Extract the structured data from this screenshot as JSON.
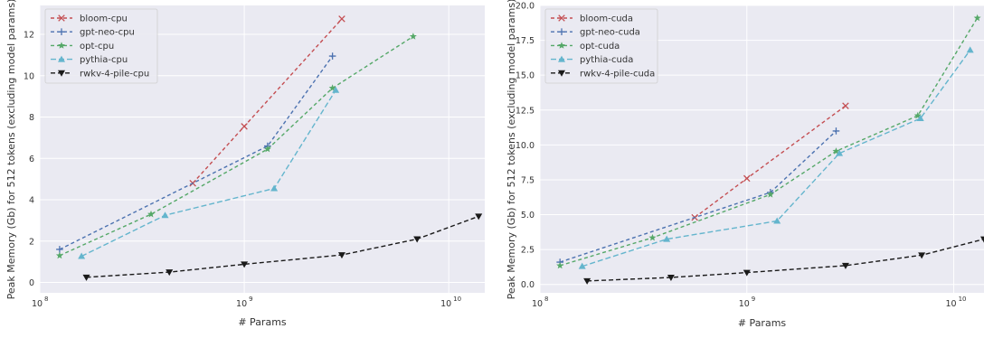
{
  "chart_data": [
    {
      "type": "line",
      "title": "",
      "xlabel": "# Params",
      "ylabel": "Peak Memory (Gb) for 512 tokens (excluding model params)",
      "xscale": "log",
      "xlim": [
        100000000,
        15000000000
      ],
      "ylim": [
        -0.5,
        13.4
      ],
      "xticks": [
        100000000,
        1000000000,
        10000000000
      ],
      "xtick_labels": [
        "10",
        "10",
        "10"
      ],
      "xtick_exps": [
        "8",
        "9",
        "10"
      ],
      "yticks": [
        0,
        2,
        4,
        6,
        8,
        10,
        12
      ],
      "ytick_labels": [
        "0",
        "2",
        "4",
        "6",
        "8",
        "10",
        "12"
      ],
      "grid": true,
      "legend_position": "top-left",
      "series": [
        {
          "name": "bloom-cpu",
          "color": "#c44e52",
          "marker": "x",
          "dash": "4,3",
          "x": [
            560000000,
            1000000000,
            3000000000
          ],
          "y": [
            4.8,
            7.55,
            12.75
          ]
        },
        {
          "name": "gpt-neo-cpu",
          "color": "#4c72b0",
          "marker": "+",
          "dash": "4,3",
          "x": [
            125000000,
            1300000000,
            2700000000
          ],
          "y": [
            1.6,
            6.6,
            10.95
          ]
        },
        {
          "name": "opt-cpu",
          "color": "#55a868",
          "marker": "star",
          "dash": "4,3",
          "x": [
            125000000,
            350000000,
            1300000000,
            2700000000,
            6700000000
          ],
          "y": [
            1.3,
            3.3,
            6.45,
            9.4,
            11.9
          ]
        },
        {
          "name": "pythia-cpu",
          "color": "#64b5cd",
          "marker": "triangle",
          "dash": "6,3",
          "x": [
            160000000,
            410000000,
            1400000000,
            2800000000
          ],
          "y": [
            1.27,
            3.25,
            4.55,
            9.3
          ]
        },
        {
          "name": "rwkv-4-pile-cpu",
          "color": "#1a1a1a",
          "marker": "triangle-down",
          "dash": "5,3",
          "x": [
            169000000,
            430000000,
            1000000000,
            3000000000,
            7000000000,
            14000000000
          ],
          "y": [
            0.25,
            0.5,
            0.88,
            1.33,
            2.1,
            3.2
          ]
        }
      ]
    },
    {
      "type": "line",
      "title": "",
      "xlabel": "# Params",
      "ylabel": "Peak Memory (Gb) for 512 tokens (excluding model params)",
      "xscale": "log",
      "xlim": [
        100000000,
        14000000000
      ],
      "ylim": [
        -0.6,
        20.0
      ],
      "xticks": [
        100000000,
        1000000000,
        10000000000
      ],
      "xtick_labels": [
        "10",
        "10",
        "10"
      ],
      "xtick_exps": [
        "8",
        "9",
        "10"
      ],
      "yticks": [
        0.0,
        2.5,
        5.0,
        7.5,
        10.0,
        12.5,
        15.0,
        17.5,
        20.0
      ],
      "ytick_labels": [
        "0.0",
        "2.5",
        "5.0",
        "7.5",
        "10.0",
        "12.5",
        "15.0",
        "17.5",
        "20.0"
      ],
      "grid": true,
      "legend_position": "top-left",
      "series": [
        {
          "name": "bloom-cuda",
          "color": "#c44e52",
          "marker": "x",
          "dash": "4,3",
          "x": [
            560000000,
            1000000000,
            3000000000
          ],
          "y": [
            4.8,
            7.6,
            12.8
          ]
        },
        {
          "name": "gpt-neo-cuda",
          "color": "#4c72b0",
          "marker": "+",
          "dash": "4,3",
          "x": [
            125000000,
            1300000000,
            2700000000
          ],
          "y": [
            1.6,
            6.6,
            11.0
          ]
        },
        {
          "name": "opt-cuda",
          "color": "#55a868",
          "marker": "star",
          "dash": "4,3",
          "x": [
            125000000,
            350000000,
            1300000000,
            2700000000,
            6700000000,
            13000000000
          ],
          "y": [
            1.35,
            3.35,
            6.45,
            9.55,
            12.1,
            19.1
          ]
        },
        {
          "name": "pythia-cuda",
          "color": "#64b5cd",
          "marker": "triangle",
          "dash": "6,3",
          "x": [
            160000000,
            410000000,
            1400000000,
            2800000000,
            6900000000,
            12000000000
          ],
          "y": [
            1.3,
            3.25,
            4.55,
            9.4,
            11.9,
            16.8
          ]
        },
        {
          "name": "rwkv-4-pile-cuda",
          "color": "#1a1a1a",
          "marker": "triangle-down",
          "dash": "5,3",
          "x": [
            169000000,
            430000000,
            1000000000,
            3000000000,
            7000000000,
            14000000000
          ],
          "y": [
            0.25,
            0.5,
            0.85,
            1.35,
            2.1,
            3.25
          ]
        }
      ]
    }
  ]
}
